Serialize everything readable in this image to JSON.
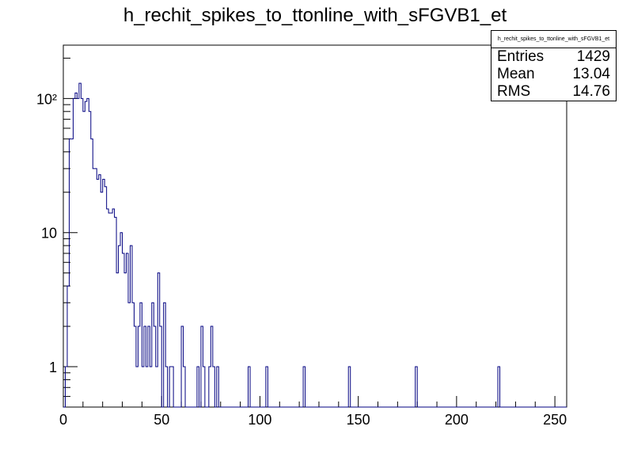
{
  "title": "h_rechit_spikes_to_ttonline_with_sFGVB1_et",
  "stats": {
    "name": "h_rechit_spikes_to_ttonline_with_sFGVB1_et",
    "rows": [
      {
        "label": "Entries",
        "value": "1429"
      },
      {
        "label": "Mean",
        "value": "13.04"
      },
      {
        "label": "RMS",
        "value": "14.76"
      }
    ]
  },
  "colors": {
    "line": "#000080",
    "axis": "#000000"
  },
  "chart_data": {
    "type": "histogram",
    "title": "h_rechit_spikes_to_ttonline_with_sFGVB1_et",
    "xlim": [
      0,
      256
    ],
    "ylim": [
      0.5,
      250
    ],
    "y_scale": "log",
    "bin_width": 1,
    "x_ticks": [
      {
        "value": 0,
        "label": "0"
      },
      {
        "value": 50,
        "label": "50"
      },
      {
        "value": 100,
        "label": "100"
      },
      {
        "value": 150,
        "label": "150"
      },
      {
        "value": 200,
        "label": "200"
      },
      {
        "value": 250,
        "label": "250"
      }
    ],
    "y_ticks": [
      {
        "value": 1,
        "label": "1"
      },
      {
        "value": 10,
        "label": "10"
      },
      {
        "value": 100,
        "label": "10²"
      }
    ],
    "bins": [
      [
        1,
        1
      ],
      [
        2,
        4
      ],
      [
        3,
        50
      ],
      [
        4,
        50
      ],
      [
        5,
        100
      ],
      [
        6,
        110
      ],
      [
        7,
        100
      ],
      [
        8,
        130
      ],
      [
        9,
        100
      ],
      [
        10,
        80
      ],
      [
        11,
        95
      ],
      [
        12,
        100
      ],
      [
        13,
        80
      ],
      [
        14,
        50
      ],
      [
        15,
        30
      ],
      [
        16,
        30
      ],
      [
        17,
        25
      ],
      [
        18,
        27
      ],
      [
        19,
        20
      ],
      [
        20,
        25
      ],
      [
        21,
        22
      ],
      [
        22,
        15
      ],
      [
        23,
        14
      ],
      [
        24,
        14
      ],
      [
        25,
        15
      ],
      [
        26,
        13
      ],
      [
        27,
        5
      ],
      [
        28,
        8
      ],
      [
        29,
        10
      ],
      [
        30,
        7
      ],
      [
        31,
        5
      ],
      [
        32,
        7
      ],
      [
        33,
        3
      ],
      [
        34,
        8
      ],
      [
        35,
        3
      ],
      [
        36,
        2
      ],
      [
        37,
        1
      ],
      [
        38,
        2
      ],
      [
        39,
        3
      ],
      [
        40,
        1
      ],
      [
        41,
        2
      ],
      [
        42,
        1
      ],
      [
        43,
        2
      ],
      [
        44,
        1
      ],
      [
        45,
        3
      ],
      [
        46,
        2
      ],
      [
        47,
        1
      ],
      [
        48,
        5
      ],
      [
        49,
        2
      ],
      [
        50,
        0.3
      ],
      [
        51,
        3
      ],
      [
        52,
        1
      ],
      [
        53,
        0.3
      ],
      [
        54,
        1
      ],
      [
        55,
        1
      ],
      [
        56,
        0.3
      ],
      [
        57,
        0.3
      ],
      [
        58,
        0.3
      ],
      [
        59,
        0.3
      ],
      [
        60,
        2
      ],
      [
        61,
        1
      ],
      [
        62,
        0.3
      ],
      [
        63,
        0.3
      ],
      [
        64,
        0.3
      ],
      [
        65,
        0.3
      ],
      [
        66,
        0.3
      ],
      [
        67,
        0.3
      ],
      [
        68,
        1
      ],
      [
        69,
        0.3
      ],
      [
        70,
        2
      ],
      [
        71,
        1
      ],
      [
        72,
        0.3
      ],
      [
        73,
        0.3
      ],
      [
        74,
        1
      ],
      [
        75,
        2
      ],
      [
        76,
        1
      ],
      [
        77,
        0.3
      ],
      [
        78,
        1
      ],
      [
        79,
        0.3
      ],
      [
        80,
        0.3
      ],
      [
        94,
        1
      ],
      [
        95,
        0.3
      ],
      [
        103,
        1
      ],
      [
        104,
        0.3
      ],
      [
        122,
        1
      ],
      [
        123,
        0.3
      ],
      [
        145,
        1
      ],
      [
        146,
        0.3
      ],
      [
        179,
        1
      ],
      [
        180,
        0.3
      ],
      [
        221,
        1
      ],
      [
        222,
        0.3
      ],
      [
        256,
        1
      ]
    ]
  }
}
